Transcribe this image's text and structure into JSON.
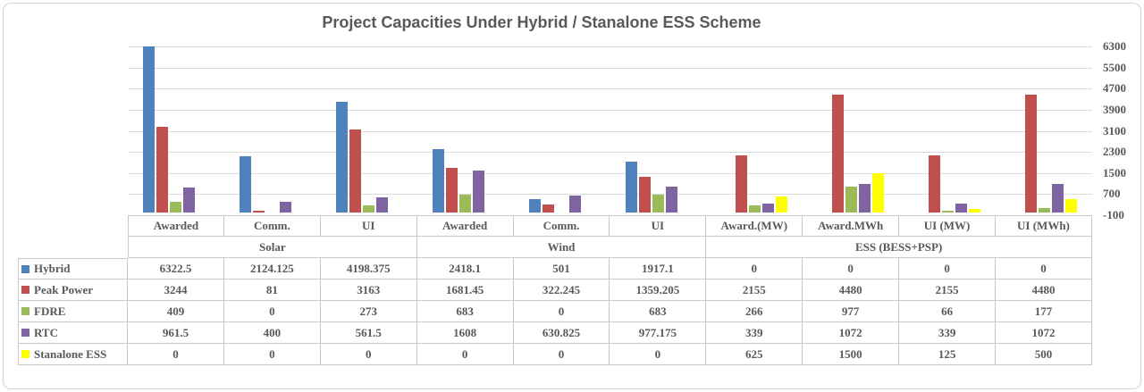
{
  "title": "Project Capacities Under Hybrid / Stanalone ESS Scheme",
  "colors": {
    "text_gray": "#595959",
    "gridline": "#dcdcdc",
    "table_border": "#c9c9c9"
  },
  "chart_data": {
    "type": "bar",
    "title": "Project Capacities Under Hybrid / Stanalone ESS Scheme",
    "xlabel": "",
    "ylabel": "",
    "grid": true,
    "legend_position": "data-table-left",
    "y_axis": {
      "min": -100,
      "max": 6300,
      "step": 800,
      "ticks": [
        6300,
        5500,
        4700,
        3900,
        3100,
        2300,
        1500,
        700,
        -100
      ]
    },
    "groups": [
      {
        "label": "Solar",
        "span": 3
      },
      {
        "label": "Wind",
        "span": 3
      },
      {
        "label": "ESS (BESS+PSP)",
        "span": 4
      }
    ],
    "categories": [
      "Awarded",
      "Comm.",
      "UI",
      "Awarded",
      "Comm.",
      "UI",
      "Award.(MW)",
      "Award.MWh",
      "UI (MW)",
      "UI (MWh)"
    ],
    "series": [
      {
        "name": "Hybrid",
        "color": "#4F81BD",
        "values": [
          6322.5,
          2124.125,
          4198.375,
          2418.1,
          501,
          1917.1,
          0,
          0,
          0,
          0
        ]
      },
      {
        "name": "Peak Power",
        "color": "#C0504D",
        "values": [
          3244,
          81,
          3163,
          1681.45,
          322.245,
          1359.205,
          2155,
          4480,
          2155,
          4480
        ]
      },
      {
        "name": "FDRE",
        "color": "#9BBB59",
        "values": [
          409,
          0,
          273,
          683,
          0,
          683,
          266,
          977,
          66,
          177
        ]
      },
      {
        "name": "RTC",
        "color": "#8064A2",
        "values": [
          961.5,
          400,
          561.5,
          1608,
          630.825,
          977.175,
          339,
          1072,
          339,
          1072
        ]
      },
      {
        "name": "Stanalone ESS",
        "color": "#FFFF00",
        "values": [
          0,
          0,
          0,
          0,
          0,
          0,
          625,
          1500,
          125,
          500
        ]
      }
    ]
  }
}
